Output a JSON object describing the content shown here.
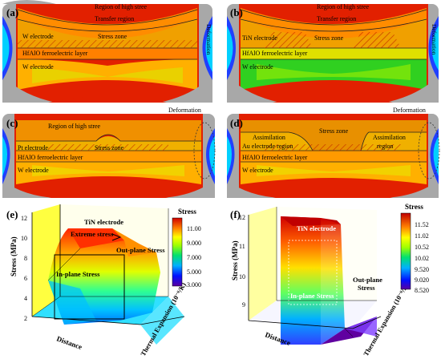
{
  "panels": {
    "a": {
      "letter": "(a)",
      "labels": [
        "Region of high stree",
        "Transfer region",
        "W electrode",
        "Stress zone",
        "HfAlO ferroelectric layer",
        "W electrode",
        "Deformation"
      ]
    },
    "b": {
      "letter": "(b)",
      "labels": [
        "Region of high stree",
        "Transfer region",
        "TiN electrode",
        "Stress zone",
        "HfAlO ferroelectric layer",
        "W electrode",
        "Deformation"
      ]
    },
    "c": {
      "letter": "(c)",
      "labels": [
        "Region of high stree",
        "Pt electrode",
        "Stress zone",
        "HfAlO ferroelectric layer",
        "W electrode",
        "Deformation"
      ]
    },
    "d": {
      "letter": "(d)",
      "labels": [
        "Stress zone",
        "Assimilation",
        "Assimilation",
        "Au electrode region",
        "region",
        "HfAlO ferroelectric layer",
        "W electrode",
        "Deformation"
      ]
    },
    "e": {
      "letter": "(e)",
      "z_axis": "Stress (MPa)",
      "z_ticks": [
        "2",
        "4",
        "6",
        "8",
        "10",
        "12"
      ],
      "x_axis": "Distance",
      "y_axis": "Thermal Expansion (10⁻⁶/K)",
      "annotations": [
        "TiN electrode",
        "Extreme stress",
        "Out-plane Stress",
        "In-plane Stress"
      ],
      "colorbar_title": "Stress",
      "colorbar_ticks": [
        "11.00",
        "9.000",
        "7.000",
        "5.000",
        "3.000"
      ]
    },
    "f": {
      "letter": "(f)",
      "z_axis": "Stress (MPa)",
      "z_ticks": [
        "9",
        "10",
        "11",
        "12"
      ],
      "x_axis": "Distance",
      "y_axis": "Thermal Expansion (10⁻⁶/K)",
      "annotations": [
        "TiN electrode",
        "In-plane Stress",
        "Out-plane",
        "Stress"
      ],
      "colorbar_title": "Stress",
      "colorbar_ticks": [
        "11.52",
        "11.02",
        "10.52",
        "10.02",
        "9.520",
        "9.020",
        "8.520"
      ]
    }
  }
}
